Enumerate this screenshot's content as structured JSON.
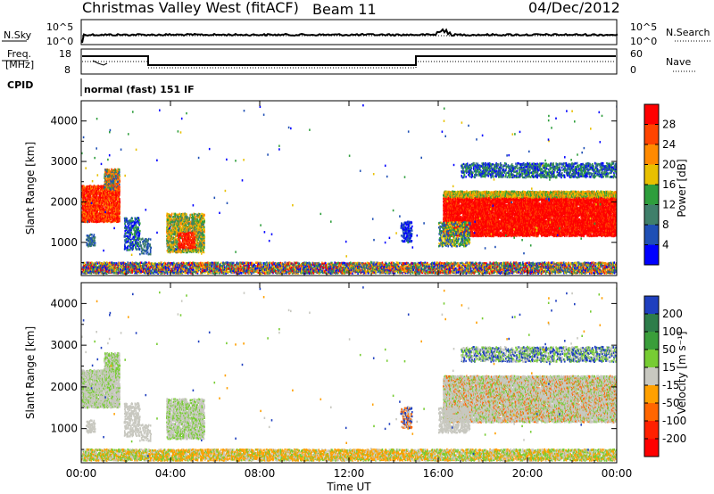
{
  "header": {
    "title": "Christmas Valley West (fitACF)",
    "beam": "Beam 11",
    "date": "04/Dec/2012"
  },
  "top_panel": {
    "left_label": "N.Sky",
    "right_label": "N.Search",
    "left_ticks": [
      "10^5",
      "10^0"
    ],
    "right_ticks": [
      "10^5",
      "10^0"
    ]
  },
  "freq_panel": {
    "left_label_1": "Freq.",
    "left_label_2": "[MHz]",
    "right_label": "Nave",
    "left_ticks": [
      "18",
      "8"
    ],
    "right_ticks": [
      "60",
      "0"
    ]
  },
  "cpid": {
    "label": "CPID",
    "text": "normal (fast) 151 IF"
  },
  "chart_data": [
    {
      "type": "heatmap",
      "name": "Power",
      "ylabel": "Slant Range [km]",
      "xlabel": "Time UT",
      "yticks": [
        "1000",
        "2000",
        "3000",
        "4000"
      ],
      "ylim": [
        180,
        4500
      ],
      "xticks": [
        "00:00",
        "04:00",
        "08:00",
        "12:00",
        "16:00",
        "20:00",
        "00:00"
      ],
      "xlim_hours": [
        0,
        24
      ],
      "colorbar": {
        "title": "Power [dB]",
        "ticks": [
          "28",
          "24",
          "20",
          "16",
          "12",
          "8",
          "4"
        ],
        "colors": [
          "#ff0000",
          "#ff4400",
          "#ff8a00",
          "#e8c000",
          "#2e9e3c",
          "#3f7f6a",
          "#1f4fb5",
          "#0000ff"
        ]
      }
    },
    {
      "type": "heatmap",
      "name": "Velocity",
      "ylabel": "Slant Range [km]",
      "xlabel": "Time UT",
      "yticks": [
        "1000",
        "2000",
        "3000",
        "4000"
      ],
      "ylim": [
        180,
        4500
      ],
      "xticks": [
        "00:00",
        "04:00",
        "08:00",
        "12:00",
        "16:00",
        "20:00",
        "00:00"
      ],
      "xlim_hours": [
        0,
        24
      ],
      "colorbar": {
        "title": "Velocity [m s⁻¹]",
        "ticks": [
          "200",
          "100",
          "50",
          "15",
          "-15",
          "-50",
          "-100",
          "-200"
        ],
        "colors": [
          "#1f3fbf",
          "#2e7d4a",
          "#3a9e3a",
          "#77cc33",
          "#c8c8c0",
          "#ffa000",
          "#ff6600",
          "#ff2000",
          "#ff0000"
        ]
      }
    }
  ]
}
